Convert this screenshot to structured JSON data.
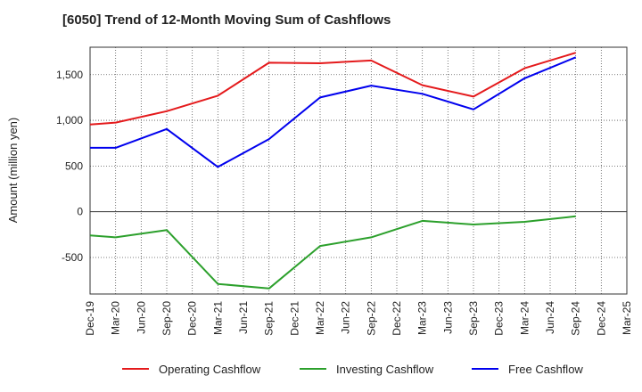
{
  "chart_data": {
    "type": "line",
    "title": "[6050]  Trend of 12-Month Moving Sum of Cashflows",
    "ylabel": "Amount (million yen)",
    "xlabel": "",
    "ylim": [
      -900,
      1800
    ],
    "yticks": [
      -500,
      0,
      500,
      1000,
      1500
    ],
    "ytick_labels": [
      "-500",
      "0",
      "500",
      "1,000",
      "1,500"
    ],
    "grid": true,
    "legend_position": "bottom",
    "categories": [
      "Dec-19",
      "Mar-20",
      "Jun-20",
      "Sep-20",
      "Dec-20",
      "Mar-21",
      "Jun-21",
      "Sep-21",
      "Dec-21",
      "Mar-22",
      "Jun-22",
      "Sep-22",
      "Dec-22",
      "Mar-23",
      "Jun-23",
      "Sep-23",
      "Dec-23",
      "Mar-24",
      "Jun-24",
      "Sep-24",
      "Dec-24",
      "Mar-25"
    ],
    "series": [
      {
        "name": "Operating Cashflow",
        "color": "#e41a1c",
        "values": [
          955,
          975,
          null,
          1100,
          null,
          1270,
          null,
          1630,
          null,
          1625,
          null,
          1655,
          null,
          1385,
          null,
          1260,
          null,
          1570,
          null,
          1740,
          null,
          null
        ]
      },
      {
        "name": "Investing Cashflow",
        "color": "#2ca02c",
        "values": [
          -260,
          -280,
          null,
          -200,
          null,
          -790,
          null,
          -840,
          null,
          -375,
          null,
          -280,
          null,
          -100,
          null,
          -140,
          null,
          -110,
          null,
          -50,
          null,
          null
        ]
      },
      {
        "name": "Free Cashflow",
        "color": "#0000ee",
        "values": [
          700,
          700,
          null,
          905,
          null,
          490,
          null,
          795,
          null,
          1250,
          null,
          1380,
          null,
          1290,
          null,
          1120,
          null,
          1460,
          null,
          1690,
          null,
          null
        ]
      }
    ]
  }
}
